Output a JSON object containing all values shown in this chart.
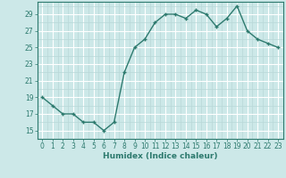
{
  "xlabel": "Humidex (Indice chaleur)",
  "x": [
    0,
    1,
    2,
    3,
    4,
    5,
    6,
    7,
    8,
    9,
    10,
    11,
    12,
    13,
    14,
    15,
    16,
    17,
    18,
    19,
    20,
    21,
    22,
    23
  ],
  "y": [
    19,
    18,
    17,
    17,
    16,
    16,
    15,
    16,
    22,
    25,
    26,
    28,
    29,
    29,
    28.5,
    29.5,
    29,
    27.5,
    28.5,
    30,
    27,
    26,
    25.5,
    25
  ],
  "line_color": "#2d7a6e",
  "marker": "+",
  "marker_color": "#2d7a6e",
  "bg_color": "#cce8e8",
  "grid_major_color": "#ffffff",
  "grid_minor_color": "#b8d8d8",
  "ylim": [
    14,
    30.5
  ],
  "yticks": [
    15,
    17,
    19,
    21,
    23,
    25,
    27,
    29
  ],
  "xticks": [
    0,
    1,
    2,
    3,
    4,
    5,
    6,
    7,
    8,
    9,
    10,
    11,
    12,
    13,
    14,
    15,
    16,
    17,
    18,
    19,
    20,
    21,
    22,
    23
  ],
  "tick_fontsize": 5.5,
  "xlabel_fontsize": 6.5,
  "line_width": 1.0,
  "marker_size": 3.5
}
